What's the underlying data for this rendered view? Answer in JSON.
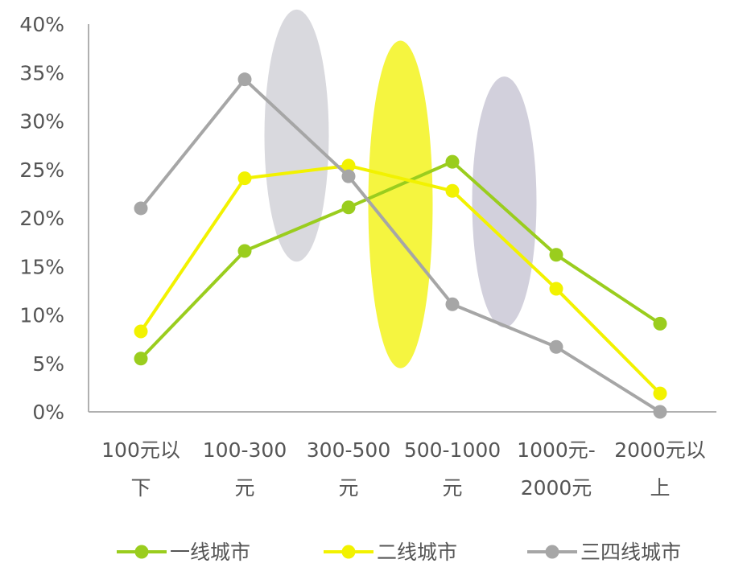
{
  "chart_data": {
    "type": "line",
    "categories": [
      [
        "100元以",
        "下"
      ],
      [
        "100-300",
        "元"
      ],
      [
        "300-500",
        "元"
      ],
      [
        "500-1000",
        "元"
      ],
      [
        "1000元-",
        "2000元"
      ],
      [
        "2000元以",
        "上"
      ]
    ],
    "y_ticks": [
      "0%",
      "5%",
      "10%",
      "15%",
      "20%",
      "25%",
      "30%",
      "35%",
      "40%"
    ],
    "ylim": [
      0,
      40
    ],
    "grid": false,
    "legend_position": "bottom",
    "series": [
      {
        "name": "一线城市",
        "color": "#9ACD1E",
        "values": [
          5.5,
          16.6,
          21.1,
          25.8,
          16.2,
          9.1
        ]
      },
      {
        "name": "二线城市",
        "color": "#F2F200",
        "values": [
          8.3,
          24.1,
          25.4,
          22.8,
          12.7,
          1.9
        ]
      },
      {
        "name": "三四线城市",
        "color": "#A6A6A6",
        "values": [
          21.0,
          34.3,
          24.3,
          11.1,
          6.7,
          0.0
        ]
      }
    ],
    "highlights": [
      {
        "category_index": 1,
        "color": "#D9D9DE",
        "y_range": [
          15.5,
          41.5
        ]
      },
      {
        "category_index": 2,
        "color": "#F5F540",
        "y_range": [
          4.5,
          38.3
        ]
      },
      {
        "category_index": 3,
        "color": "#D2D0DC",
        "y_range": [
          8.7,
          34.6
        ]
      }
    ]
  }
}
